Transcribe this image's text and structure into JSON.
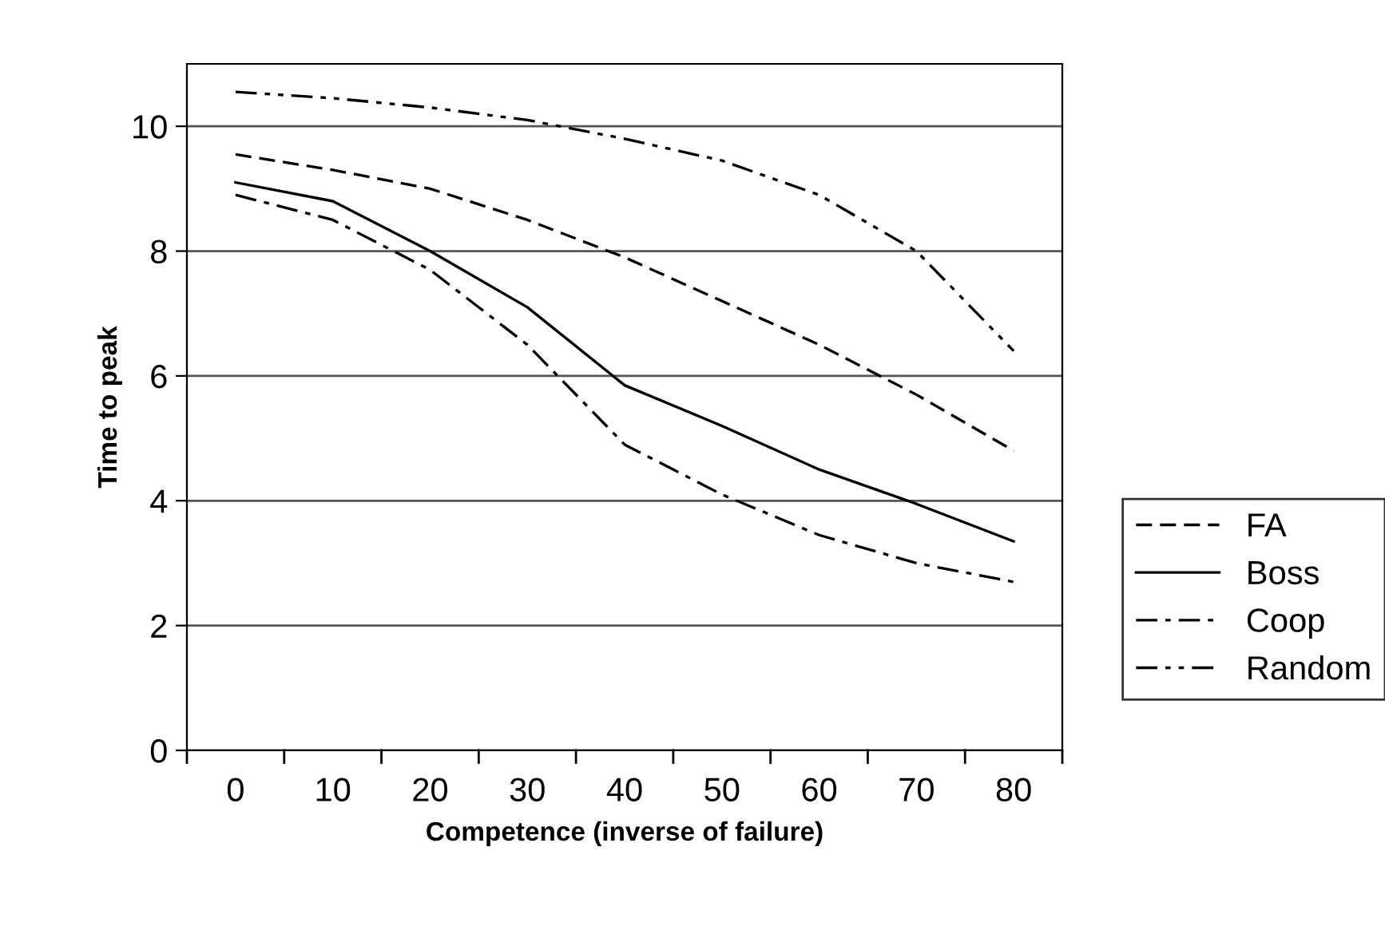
{
  "chart_data": {
    "type": "line",
    "xlabel": "Competence (inverse of failure)",
    "ylabel": "Time to peak",
    "categories": [
      "0",
      "10",
      "20",
      "30",
      "40",
      "50",
      "60",
      "70",
      "80"
    ],
    "ylim": [
      0,
      11
    ],
    "yticks": [
      0,
      2,
      4,
      6,
      8,
      10
    ],
    "grid": "y",
    "legend": "right",
    "marker": "none",
    "series": [
      {
        "name": "FA",
        "color": "#000000",
        "line_style": "dashed",
        "values": [
          9.55,
          9.3,
          9.0,
          8.5,
          7.9,
          7.2,
          6.5,
          5.7,
          4.8
        ]
      },
      {
        "name": "Boss",
        "color": "#000000",
        "line_style": "solid",
        "values": [
          9.1,
          8.8,
          8.0,
          7.1,
          5.85,
          5.2,
          4.5,
          3.95,
          3.35
        ]
      },
      {
        "name": "Coop",
        "color": "#000000",
        "line_style": "dashdot",
        "values": [
          8.9,
          8.5,
          7.7,
          6.5,
          4.9,
          4.1,
          3.45,
          3.0,
          2.7
        ]
      },
      {
        "name": "Random",
        "color": "#000000",
        "line_style": "dashdotdot",
        "values": [
          10.55,
          10.45,
          10.3,
          10.1,
          9.8,
          9.45,
          8.9,
          8.0,
          6.4
        ]
      }
    ]
  }
}
